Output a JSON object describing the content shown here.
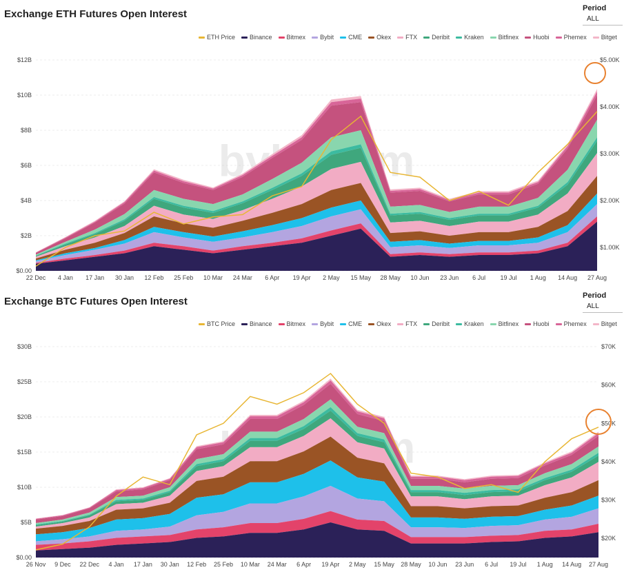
{
  "charts": [
    {
      "id": "eth",
      "title": "Exchange ETH Futures Open Interest",
      "period_label": "Period",
      "period_value": "ALL",
      "watermark": "bybt.com"
    },
    {
      "id": "btc",
      "title": "Exchange BTC Futures Open Interest",
      "period_label": "Period",
      "period_value": "ALL",
      "watermark": "bybt.com"
    }
  ],
  "colors": {
    "Binance": "#2b2158",
    "Bitmex": "#e3436a",
    "Bybit": "#b3a5e0",
    "CME": "#1ec0ea",
    "Okex": "#9a5425",
    "FTX": "#f2acc4",
    "Deribit": "#3fa77d",
    "Kraken": "#3cbba0",
    "Bitfinex": "#89d6ae",
    "Huobi": "#c5527e",
    "Phemex": "#d86598",
    "Bitget": "#f3b6c8",
    "Price": "#e8b634",
    "highlight": "#e8812f"
  },
  "chart_data": [
    {
      "type": "area",
      "stacked": true,
      "title": "Exchange ETH Futures Open Interest",
      "x": [
        "22 Dec",
        "4 Jan",
        "17 Jan",
        "30 Jan",
        "12 Feb",
        "25 Feb",
        "10 Mar",
        "24 Mar",
        "6 Apr",
        "19 Apr",
        "2 May",
        "15 May",
        "28 May",
        "10 Jun",
        "23 Jun",
        "6 Jul",
        "19 Jul",
        "1 Aug",
        "14 Aug",
        "27 Aug"
      ],
      "x_ticks": [
        "22 Dec",
        "4 Jan",
        "17 Jan",
        "30 Jan",
        "12 Feb",
        "25 Feb",
        "10 Mar",
        "24 Mar",
        "6 Apr",
        "19 Apr",
        "2 May",
        "15 May",
        "28 May",
        "10 Jun",
        "23 Jun",
        "6 Jul",
        "19 Jul",
        "1 Aug",
        "14 Aug",
        "27 Aug"
      ],
      "y_ticks": [
        "$0.00",
        "$2B",
        "$4B",
        "$6B",
        "$8B",
        "$10B",
        "$12B"
      ],
      "y_range": [
        0,
        12
      ],
      "y2_ticks": [
        "$1.00K",
        "$2.00K",
        "$3.00K",
        "$4.00K",
        "$5.00K"
      ],
      "y2_range": [
        500,
        5000
      ],
      "legend": [
        "ETH Price",
        "Binance",
        "Bitmex",
        "Bybit",
        "CME",
        "Okex",
        "FTX",
        "Deribit",
        "Kraken",
        "Bitfinex",
        "Huobi",
        "Phemex",
        "Bitget"
      ],
      "legend_position": "top-right",
      "series": [
        {
          "name": "Binance",
          "values": [
            0.4,
            0.6,
            0.8,
            1.0,
            1.4,
            1.2,
            1.0,
            1.2,
            1.4,
            1.6,
            2.0,
            2.4,
            0.8,
            0.9,
            0.8,
            0.9,
            0.9,
            1.0,
            1.4,
            2.8
          ]
        },
        {
          "name": "Bitmex",
          "values": [
            0.05,
            0.1,
            0.1,
            0.15,
            0.2,
            0.2,
            0.15,
            0.2,
            0.2,
            0.25,
            0.3,
            0.3,
            0.15,
            0.15,
            0.15,
            0.15,
            0.15,
            0.15,
            0.2,
            0.3
          ]
        },
        {
          "name": "Bybit",
          "values": [
            0.1,
            0.2,
            0.3,
            0.4,
            0.6,
            0.5,
            0.5,
            0.5,
            0.6,
            0.7,
            0.8,
            0.8,
            0.4,
            0.4,
            0.35,
            0.4,
            0.4,
            0.45,
            0.6,
            0.7
          ]
        },
        {
          "name": "CME",
          "values": [
            0.05,
            0.1,
            0.1,
            0.2,
            0.3,
            0.3,
            0.3,
            0.35,
            0.4,
            0.45,
            0.5,
            0.5,
            0.3,
            0.3,
            0.25,
            0.25,
            0.25,
            0.3,
            0.4,
            0.6
          ]
        },
        {
          "name": "Okex",
          "values": [
            0.1,
            0.2,
            0.3,
            0.4,
            0.6,
            0.5,
            0.5,
            0.6,
            0.7,
            0.8,
            1.0,
            1.0,
            0.5,
            0.5,
            0.45,
            0.5,
            0.5,
            0.6,
            0.8,
            1.0
          ]
        },
        {
          "name": "FTX",
          "values": [
            0.1,
            0.2,
            0.3,
            0.4,
            0.6,
            0.5,
            0.5,
            0.6,
            0.8,
            1.0,
            1.2,
            1.2,
            0.6,
            0.6,
            0.55,
            0.6,
            0.6,
            0.7,
            1.0,
            1.3
          ]
        },
        {
          "name": "Deribit",
          "values": [
            0.05,
            0.1,
            0.2,
            0.3,
            0.4,
            0.4,
            0.35,
            0.4,
            0.5,
            0.6,
            0.8,
            0.8,
            0.4,
            0.4,
            0.35,
            0.35,
            0.35,
            0.4,
            0.5,
            0.7
          ]
        },
        {
          "name": "Kraken",
          "values": [
            0.02,
            0.05,
            0.05,
            0.08,
            0.1,
            0.1,
            0.1,
            0.1,
            0.12,
            0.15,
            0.2,
            0.2,
            0.1,
            0.1,
            0.1,
            0.1,
            0.1,
            0.1,
            0.15,
            0.2
          ]
        },
        {
          "name": "Bitfinex",
          "values": [
            0.05,
            0.1,
            0.2,
            0.3,
            0.4,
            0.4,
            0.4,
            0.4,
            0.5,
            0.6,
            0.8,
            0.8,
            0.4,
            0.4,
            0.35,
            0.4,
            0.4,
            0.45,
            0.7,
            1.0
          ]
        },
        {
          "name": "Huobi",
          "values": [
            0.1,
            0.2,
            0.4,
            0.6,
            1.0,
            0.9,
            0.8,
            1.0,
            1.2,
            1.3,
            1.8,
            1.6,
            0.8,
            0.8,
            0.6,
            0.7,
            0.7,
            0.8,
            1.2,
            1.4
          ]
        },
        {
          "name": "Phemex",
          "values": [
            0.02,
            0.04,
            0.05,
            0.08,
            0.1,
            0.1,
            0.08,
            0.1,
            0.12,
            0.15,
            0.2,
            0.2,
            0.1,
            0.1,
            0.08,
            0.1,
            0.1,
            0.1,
            0.15,
            0.2
          ]
        },
        {
          "name": "Bitget",
          "values": [
            0.02,
            0.03,
            0.05,
            0.05,
            0.08,
            0.08,
            0.06,
            0.08,
            0.1,
            0.12,
            0.15,
            0.15,
            0.08,
            0.08,
            0.07,
            0.08,
            0.08,
            0.08,
            0.1,
            0.15
          ]
        }
      ],
      "price": {
        "name": "ETH Price",
        "values": [
          600,
          1000,
          1250,
          1350,
          1750,
          1500,
          1650,
          1700,
          2100,
          2300,
          3300,
          3800,
          2600,
          2500,
          2000,
          2200,
          1900,
          2600,
          3200,
          3900
        ]
      }
    },
    {
      "type": "area",
      "stacked": true,
      "title": "Exchange BTC Futures Open Interest",
      "x": [
        "26 Nov",
        "9 Dec",
        "22 Dec",
        "4 Jan",
        "17 Jan",
        "30 Jan",
        "12 Feb",
        "25 Feb",
        "10 Mar",
        "24 Mar",
        "6 Apr",
        "19 Apr",
        "2 May",
        "15 May",
        "28 May",
        "10 Jun",
        "23 Jun",
        "6 Jul",
        "19 Jul",
        "1 Aug",
        "14 Aug",
        "27 Aug"
      ],
      "x_ticks": [
        "26 Nov",
        "9 Dec",
        "22 Dec",
        "4 Jan",
        "17 Jan",
        "30 Jan",
        "12 Feb",
        "25 Feb",
        "10 Mar",
        "24 Mar",
        "6 Apr",
        "19 Apr",
        "2 May",
        "15 May",
        "28 May",
        "10 Jun",
        "23 Jun",
        "6 Jul",
        "19 Jul",
        "1 Aug",
        "14 Aug",
        "27 Aug"
      ],
      "y_ticks": [
        "$0.00",
        "$5B",
        "$10B",
        "$15B",
        "$20B",
        "$25B",
        "$30B"
      ],
      "y_range": [
        0,
        30
      ],
      "y2_ticks": [
        "$20K",
        "$30K",
        "$40K",
        "$50K",
        "$60K",
        "$70K"
      ],
      "y2_range": [
        15000,
        70000
      ],
      "legend": [
        "BTC Price",
        "Binance",
        "Bitmex",
        "Bybit",
        "CME",
        "Okex",
        "FTX",
        "Deribit",
        "Kraken",
        "Bitfinex",
        "Huobi",
        "Phemex",
        "Bitget"
      ],
      "legend_position": "top-right",
      "series": [
        {
          "name": "Binance",
          "values": [
            1.0,
            1.2,
            1.4,
            1.8,
            2.0,
            2.2,
            2.8,
            3.0,
            3.5,
            3.5,
            4.0,
            5.0,
            4.0,
            3.8,
            2.0,
            2.0,
            2.0,
            2.2,
            2.3,
            2.8,
            3.0,
            3.6
          ]
        },
        {
          "name": "Bitmex",
          "values": [
            0.8,
            0.8,
            0.9,
            1.0,
            1.0,
            1.0,
            1.2,
            1.3,
            1.4,
            1.4,
            1.5,
            1.6,
            1.4,
            1.4,
            0.9,
            0.9,
            0.9,
            0.9,
            0.9,
            1.0,
            1.0,
            1.2
          ]
        },
        {
          "name": "Bybit",
          "values": [
            0.5,
            0.6,
            0.7,
            1.0,
            1.0,
            1.2,
            2.0,
            2.2,
            2.8,
            2.8,
            3.2,
            3.6,
            3.0,
            2.8,
            1.4,
            1.4,
            1.3,
            1.4,
            1.4,
            1.6,
            1.8,
            2.2
          ]
        },
        {
          "name": "CME",
          "values": [
            1.0,
            1.0,
            1.2,
            1.6,
            1.6,
            1.8,
            2.5,
            2.5,
            3.0,
            3.0,
            3.2,
            3.6,
            3.0,
            2.8,
            1.4,
            1.4,
            1.3,
            1.3,
            1.3,
            1.4,
            1.6,
            1.8
          ]
        },
        {
          "name": "Okex",
          "values": [
            0.8,
            0.9,
            1.0,
            1.4,
            1.4,
            1.6,
            2.4,
            2.5,
            3.0,
            3.0,
            3.2,
            3.4,
            2.8,
            2.6,
            1.6,
            1.6,
            1.5,
            1.5,
            1.5,
            1.7,
            1.9,
            2.2
          ]
        },
        {
          "name": "FTX",
          "values": [
            0.3,
            0.4,
            0.5,
            0.8,
            0.8,
            1.0,
            1.4,
            1.5,
            2.0,
            2.0,
            2.2,
            2.6,
            2.2,
            2.1,
            1.4,
            1.4,
            1.3,
            1.4,
            1.4,
            1.8,
            2.1,
            2.6
          ]
        },
        {
          "name": "Deribit",
          "values": [
            0.2,
            0.2,
            0.3,
            0.4,
            0.4,
            0.5,
            0.7,
            0.7,
            0.9,
            0.9,
            1.0,
            1.1,
            0.9,
            0.9,
            0.6,
            0.6,
            0.6,
            0.6,
            0.6,
            0.7,
            0.8,
            0.9
          ]
        },
        {
          "name": "Kraken",
          "values": [
            0.1,
            0.1,
            0.1,
            0.2,
            0.2,
            0.2,
            0.3,
            0.3,
            0.4,
            0.4,
            0.4,
            0.5,
            0.4,
            0.4,
            0.3,
            0.3,
            0.3,
            0.3,
            0.3,
            0.3,
            0.3,
            0.4
          ]
        },
        {
          "name": "Bitfinex",
          "values": [
            0.2,
            0.2,
            0.3,
            0.4,
            0.4,
            0.5,
            0.7,
            0.7,
            0.9,
            0.9,
            1.0,
            1.1,
            0.9,
            0.9,
            0.6,
            0.6,
            0.6,
            0.6,
            0.6,
            0.7,
            0.8,
            0.9
          ]
        },
        {
          "name": "Huobi",
          "values": [
            0.5,
            0.5,
            0.6,
            0.8,
            0.9,
            1.0,
            1.4,
            1.4,
            1.8,
            1.8,
            2.0,
            2.2,
            1.8,
            1.7,
            1.0,
            1.0,
            0.9,
            1.0,
            1.0,
            1.1,
            1.3,
            1.5
          ]
        },
        {
          "name": "Phemex",
          "values": [
            0.1,
            0.1,
            0.1,
            0.2,
            0.2,
            0.2,
            0.3,
            0.3,
            0.4,
            0.4,
            0.4,
            0.5,
            0.4,
            0.4,
            0.3,
            0.3,
            0.3,
            0.3,
            0.3,
            0.3,
            0.3,
            0.4
          ]
        },
        {
          "name": "Bitget",
          "values": [
            0.05,
            0.05,
            0.05,
            0.1,
            0.1,
            0.1,
            0.15,
            0.15,
            0.2,
            0.2,
            0.2,
            0.25,
            0.2,
            0.2,
            0.15,
            0.15,
            0.15,
            0.15,
            0.15,
            0.15,
            0.2,
            0.2
          ]
        }
      ],
      "price": {
        "name": "BTC Price",
        "values": [
          17000,
          18500,
          23000,
          31000,
          36000,
          34000,
          47000,
          50000,
          57000,
          55000,
          58000,
          63000,
          55000,
          50000,
          37000,
          36000,
          33000,
          34000,
          32000,
          40000,
          46000,
          49000
        ]
      }
    }
  ]
}
